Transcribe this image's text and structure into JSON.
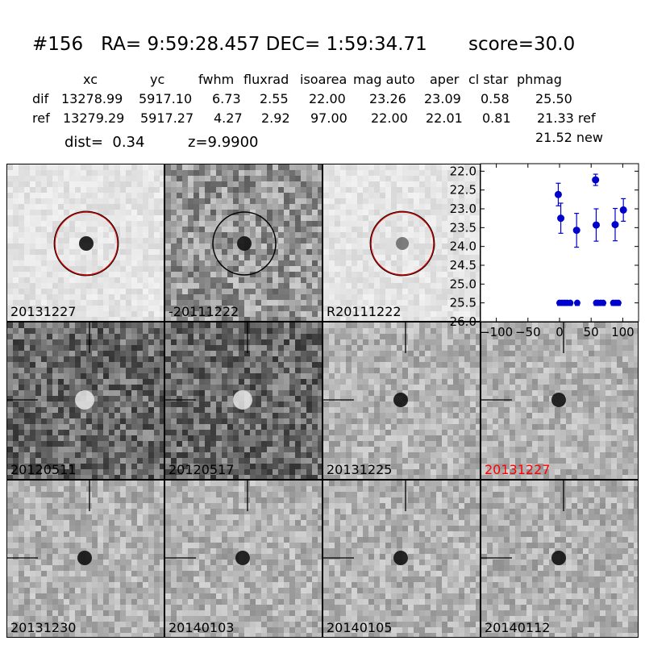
{
  "header": {
    "title": "#156   RA= 9:59:28.457 DEC= 1:59:34.71       score=30.0",
    "columns": [
      "xc",
      "yc",
      "fwhm",
      "fluxrad",
      "isoarea",
      "mag auto",
      "aper",
      "cl star",
      "phmag"
    ],
    "rows": [
      {
        "name": "dif",
        "values": [
          "13278.99",
          "5917.10",
          "6.73",
          "2.55",
          "22.00",
          "23.26",
          "23.09",
          "0.58",
          "25.50"
        ]
      },
      {
        "name": "ref",
        "values": [
          "13279.29",
          "5917.27",
          "4.27",
          "2.92",
          "97.00",
          "22.00",
          "22.01",
          "0.81",
          "21.33 ref"
        ]
      }
    ],
    "phmag_new": "21.52 new",
    "dist_text": "dist=  0.34",
    "z_text": "z=9.9900"
  },
  "stamps": [
    {
      "label": "20131227",
      "kind": "light",
      "circle": "red",
      "source": "dark",
      "label_color": "#000000"
    },
    {
      "label": "-20111222",
      "kind": "noisy-mid",
      "circle": "black",
      "source": "dark",
      "label_color": "#000000"
    },
    {
      "label": "R20111222",
      "kind": "light",
      "circle": "red",
      "source": "faint",
      "label_color": "#000000"
    },
    {
      "label": "20120511",
      "kind": "noisy-dark",
      "circle": "none",
      "source": "bright",
      "label_color": "#000000"
    },
    {
      "label": "20120517",
      "kind": "noisy-dark",
      "circle": "none",
      "source": "bright",
      "label_color": "#000000"
    },
    {
      "label": "20131225",
      "kind": "mid",
      "circle": "none",
      "source": "dark",
      "label_color": "#000000"
    },
    {
      "label": "20131227",
      "kind": "mid",
      "circle": "none",
      "source": "dark",
      "label_color": "#ff0000"
    },
    {
      "label": "20131230",
      "kind": "mid",
      "circle": "none",
      "source": "dark",
      "label_color": "#000000"
    },
    {
      "label": "20140103",
      "kind": "mid",
      "circle": "none",
      "source": "dark",
      "label_color": "#000000"
    },
    {
      "label": "20140105",
      "kind": "mid",
      "circle": "none",
      "source": "dark",
      "label_color": "#000000"
    },
    {
      "label": "20140112",
      "kind": "mid",
      "circle": "none",
      "source": "dark",
      "label_color": "#000000"
    }
  ],
  "chart_data": {
    "type": "scatter",
    "xlim": [
      -125,
      125
    ],
    "ylim": [
      26.0,
      21.8
    ],
    "y_inverted": true,
    "x_ticks": [
      -100,
      -50,
      0,
      50,
      100
    ],
    "y_ticks": [
      22.0,
      22.5,
      23.0,
      23.5,
      24.0,
      24.5,
      25.0,
      25.5,
      26.0
    ],
    "marker_color": "#0000cc",
    "points_with_errors": [
      {
        "x": -2,
        "y": 22.62,
        "err": 0.3
      },
      {
        "x": 2,
        "y": 23.25,
        "err": 0.4
      },
      {
        "x": 27,
        "y": 23.57,
        "err": 0.45
      },
      {
        "x": 57,
        "y": 22.23,
        "err": 0.15
      },
      {
        "x": 58,
        "y": 23.43,
        "err": 0.43
      },
      {
        "x": 88,
        "y": 23.42,
        "err": 0.43
      },
      {
        "x": 101,
        "y": 23.03,
        "err": 0.3
      }
    ],
    "limit_points": [
      {
        "x": 0,
        "y": 25.5
      },
      {
        "x": 4,
        "y": 25.5
      },
      {
        "x": 8,
        "y": 25.5
      },
      {
        "x": 12,
        "y": 25.5
      },
      {
        "x": 17,
        "y": 25.5
      },
      {
        "x": 28,
        "y": 25.5
      },
      {
        "x": 58,
        "y": 25.5
      },
      {
        "x": 61,
        "y": 25.5
      },
      {
        "x": 65,
        "y": 25.5
      },
      {
        "x": 69,
        "y": 25.5
      },
      {
        "x": 85,
        "y": 25.5
      },
      {
        "x": 89,
        "y": 25.5
      },
      {
        "x": 93,
        "y": 25.5
      }
    ]
  }
}
